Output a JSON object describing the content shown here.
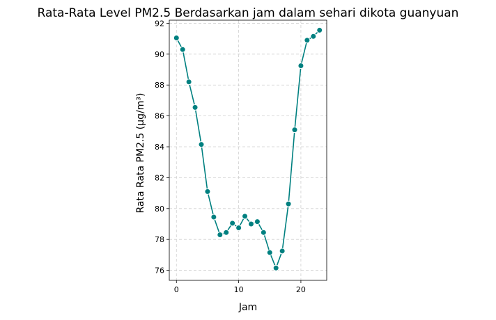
{
  "chart_data": {
    "type": "line",
    "title": "Rata-Rata Level PM2.5 Berdasarkan jam dalam sehari dikota guanyuan",
    "xlabel": "Jam",
    "ylabel": "Rata Rata PM2.5 (µg/m³)",
    "xlim": [
      -1.15,
      24.15
    ],
    "ylim": [
      75.35,
      92.2
    ],
    "xticks": [
      0,
      10,
      20
    ],
    "yticks": [
      76,
      78,
      80,
      82,
      84,
      86,
      88,
      90,
      92
    ],
    "grid": true,
    "colors": {
      "line": "#008080",
      "marker_edge": "#ffffff",
      "grid": "#d0d0d0",
      "axis": "#000000"
    },
    "series": [
      {
        "x": [
          0,
          1,
          2,
          3,
          4,
          5,
          6,
          7,
          8,
          9,
          10,
          11,
          12,
          13,
          14,
          15,
          16,
          17,
          18,
          19,
          20,
          21,
          22,
          23
        ],
        "values": [
          91.05,
          90.3,
          88.2,
          86.55,
          84.15,
          81.1,
          79.45,
          78.3,
          78.45,
          79.05,
          78.75,
          79.5,
          79.0,
          79.15,
          78.45,
          77.15,
          76.15,
          77.25,
          80.3,
          85.1,
          89.25,
          90.9,
          91.15,
          91.55
        ]
      }
    ]
  }
}
